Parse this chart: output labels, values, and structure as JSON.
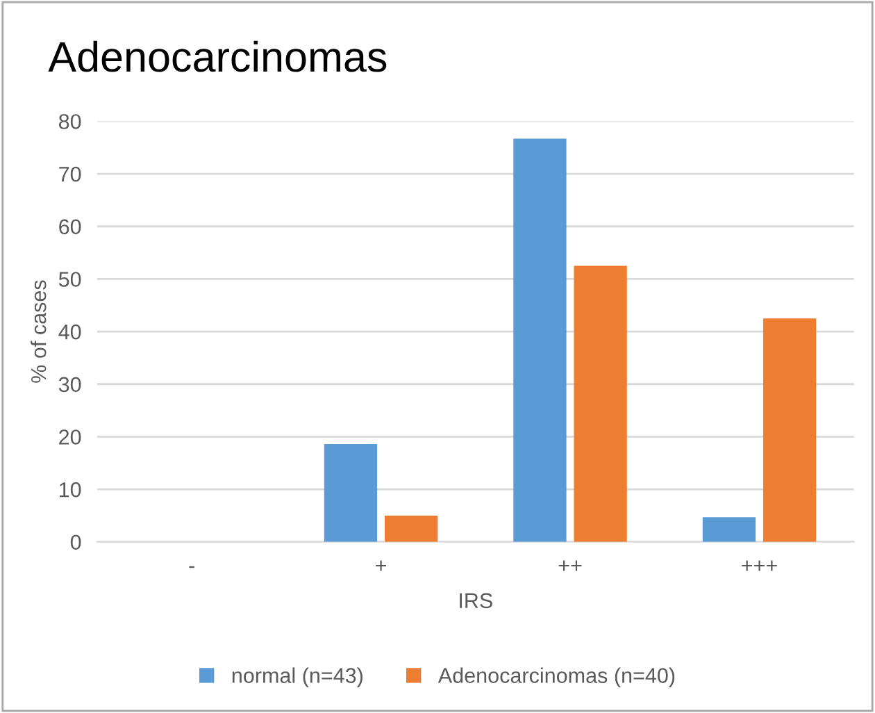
{
  "chart_data": {
    "type": "bar",
    "title": "Adenocarcinomas",
    "xlabel": "IRS",
    "ylabel": "% of cases",
    "categories": [
      "-",
      "+",
      "++",
      "+++"
    ],
    "series": [
      {
        "name": "normal (n=43)",
        "color": "#5b9bd5",
        "values": [
          0,
          18.6,
          76.7,
          4.7
        ]
      },
      {
        "name": "Adenocarcinomas (n=40)",
        "color": "#ed7d31",
        "values": [
          0,
          5,
          52.5,
          42.5
        ]
      }
    ],
    "ylim": [
      0,
      80
    ],
    "yticks": [
      0,
      10,
      20,
      30,
      40,
      50,
      60,
      70,
      80
    ],
    "grid": "y",
    "legend": "bottom"
  }
}
